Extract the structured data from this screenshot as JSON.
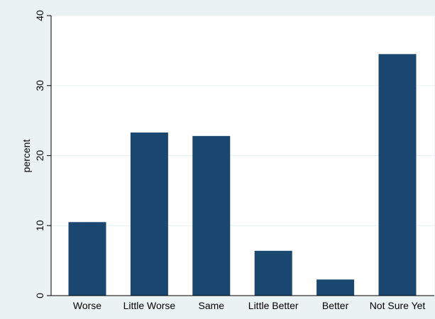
{
  "chart_data": {
    "type": "bar",
    "categories": [
      "Worse",
      "Little Worse",
      "Same",
      "Little Better",
      "Better",
      "Not Sure Yet"
    ],
    "values": [
      10.5,
      23.3,
      22.8,
      6.4,
      2.3,
      34.5
    ],
    "ylabel": "percent",
    "xlabel": "",
    "ylim": [
      0,
      40
    ],
    "yticks": [
      0,
      10,
      20,
      30,
      40
    ],
    "grid": true,
    "colors": {
      "bar": "#1a476f",
      "outer_background": "#eaf2f3",
      "plot_background": "#ffffff",
      "grid": "#eaf2f3",
      "axis": "#000000"
    }
  }
}
